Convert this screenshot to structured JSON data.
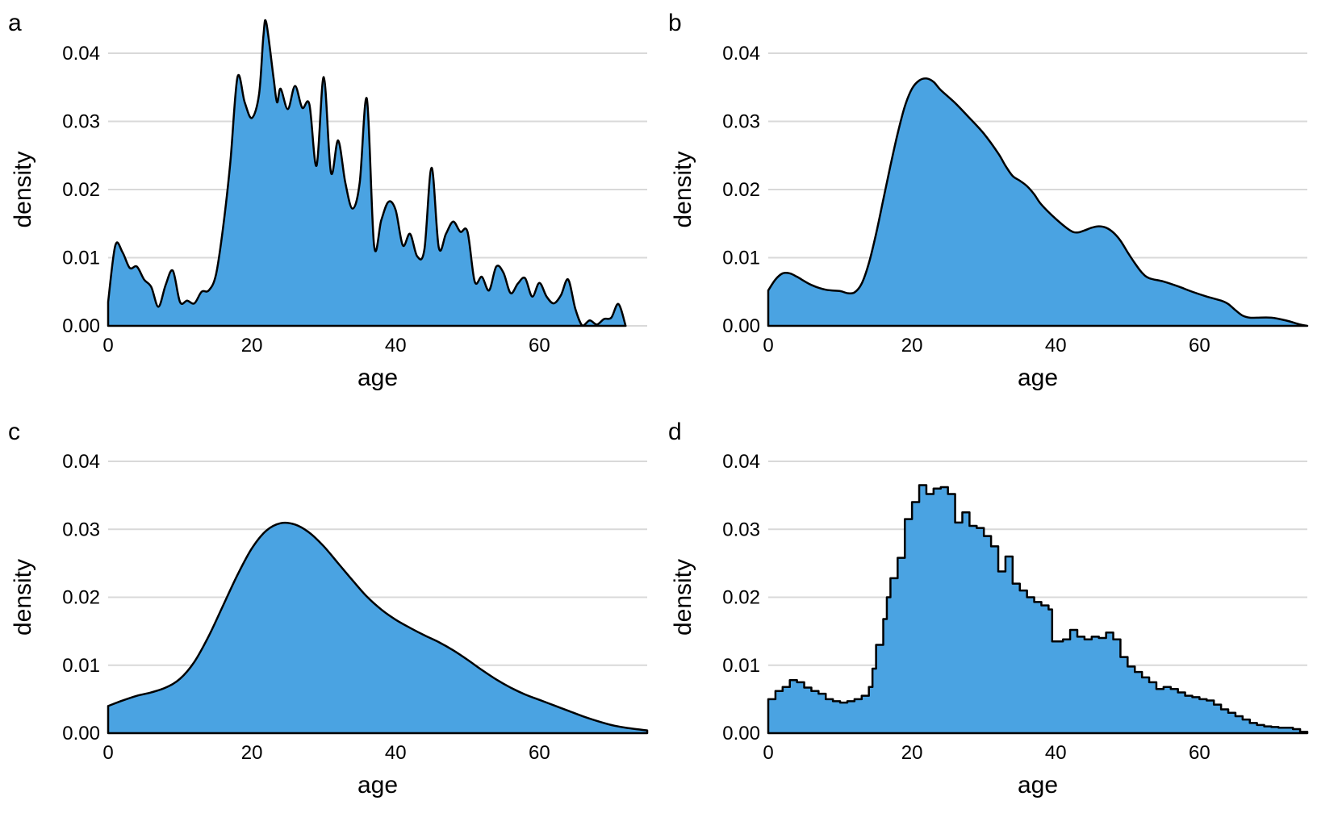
{
  "figure": {
    "fill_color": "#4AA3E2",
    "line_color": "#000000",
    "grid_color": "#d9d9d9"
  },
  "chart_data": [
    {
      "type": "area",
      "panel_label": "a",
      "xlabel": "age",
      "ylabel": "density",
      "xlim": [
        0,
        75
      ],
      "ylim": [
        0,
        0.04
      ],
      "x_ticks": [
        "0",
        "20",
        "40",
        "60"
      ],
      "y_ticks": [
        "0.00",
        "0.01",
        "0.02",
        "0.03",
        "0.04"
      ],
      "grid": "horizontal",
      "points": [
        [
          0,
          0.0035
        ],
        [
          1,
          0.0118
        ],
        [
          2,
          0.0108
        ],
        [
          3,
          0.0085
        ],
        [
          4,
          0.0087
        ],
        [
          5,
          0.0068
        ],
        [
          6,
          0.0057
        ],
        [
          7,
          0.0028
        ],
        [
          8,
          0.006
        ],
        [
          9,
          0.0081
        ],
        [
          10,
          0.0035
        ],
        [
          11,
          0.0037
        ],
        [
          12,
          0.0033
        ],
        [
          13,
          0.005
        ],
        [
          14,
          0.0052
        ],
        [
          15,
          0.0075
        ],
        [
          16,
          0.0145
        ],
        [
          17,
          0.024
        ],
        [
          18,
          0.0365
        ],
        [
          19,
          0.0328
        ],
        [
          20,
          0.0305
        ],
        [
          21,
          0.034
        ],
        [
          21.6,
          0.0425
        ],
        [
          22,
          0.0445
        ],
        [
          23,
          0.0365
        ],
        [
          23.5,
          0.0328
        ],
        [
          24,
          0.0348
        ],
        [
          25,
          0.0318
        ],
        [
          26,
          0.0352
        ],
        [
          27,
          0.032
        ],
        [
          28,
          0.0325
        ],
        [
          29,
          0.0235
        ],
        [
          30,
          0.0365
        ],
        [
          31,
          0.0225
        ],
        [
          32,
          0.0272
        ],
        [
          33,
          0.021
        ],
        [
          34,
          0.0172
        ],
        [
          35,
          0.021
        ],
        [
          36,
          0.0333
        ],
        [
          37,
          0.0118
        ],
        [
          38,
          0.0155
        ],
        [
          39,
          0.0182
        ],
        [
          40,
          0.017
        ],
        [
          41,
          0.0118
        ],
        [
          42,
          0.0135
        ],
        [
          43,
          0.0102
        ],
        [
          44,
          0.0112
        ],
        [
          45,
          0.0232
        ],
        [
          46,
          0.0115
        ],
        [
          47,
          0.0135
        ],
        [
          48,
          0.0153
        ],
        [
          49,
          0.0138
        ],
        [
          50,
          0.0138
        ],
        [
          51,
          0.0065
        ],
        [
          52,
          0.0072
        ],
        [
          53,
          0.0052
        ],
        [
          54,
          0.0087
        ],
        [
          55,
          0.0078
        ],
        [
          56,
          0.0048
        ],
        [
          57,
          0.0062
        ],
        [
          58,
          0.007
        ],
        [
          59,
          0.0043
        ],
        [
          60,
          0.0063
        ],
        [
          61,
          0.0043
        ],
        [
          62,
          0.0033
        ],
        [
          63,
          0.0045
        ],
        [
          64,
          0.0068
        ],
        [
          65,
          0.0025
        ],
        [
          66,
          0.0
        ],
        [
          67,
          0.0008
        ],
        [
          68,
          0.0002
        ],
        [
          69,
          0.001
        ],
        [
          70,
          0.0012
        ],
        [
          71,
          0.0032
        ],
        [
          72,
          0.0
        ]
      ]
    },
    {
      "type": "area",
      "panel_label": "b",
      "xlabel": "age",
      "ylabel": "density",
      "xlim": [
        0,
        75
      ],
      "ylim": [
        0,
        0.04
      ],
      "x_ticks": [
        "0",
        "20",
        "40",
        "60"
      ],
      "y_ticks": [
        "0.00",
        "0.01",
        "0.02",
        "0.03",
        "0.04"
      ],
      "grid": "horizontal",
      "points": [
        [
          0,
          0.0052
        ],
        [
          1,
          0.0068
        ],
        [
          2,
          0.0077
        ],
        [
          3,
          0.0077
        ],
        [
          4,
          0.0072
        ],
        [
          6,
          0.006
        ],
        [
          8,
          0.0053
        ],
        [
          10,
          0.0051
        ],
        [
          11,
          0.0048
        ],
        [
          12,
          0.0049
        ],
        [
          13,
          0.0062
        ],
        [
          14,
          0.0092
        ],
        [
          15,
          0.0135
        ],
        [
          16,
          0.0185
        ],
        [
          17,
          0.0235
        ],
        [
          18,
          0.0282
        ],
        [
          19,
          0.0322
        ],
        [
          20,
          0.0348
        ],
        [
          21,
          0.036
        ],
        [
          22,
          0.0363
        ],
        [
          23,
          0.0358
        ],
        [
          24,
          0.0346
        ],
        [
          26,
          0.0327
        ],
        [
          28,
          0.0305
        ],
        [
          30,
          0.0282
        ],
        [
          32,
          0.0253
        ],
        [
          33,
          0.0235
        ],
        [
          34,
          0.022
        ],
        [
          35,
          0.0213
        ],
        [
          36,
          0.0205
        ],
        [
          37,
          0.0193
        ],
        [
          38,
          0.0178
        ],
        [
          40,
          0.0157
        ],
        [
          42,
          0.014
        ],
        [
          43,
          0.0137
        ],
        [
          44,
          0.014
        ],
        [
          45,
          0.0144
        ],
        [
          46,
          0.0146
        ],
        [
          47,
          0.0144
        ],
        [
          48,
          0.0137
        ],
        [
          49,
          0.0125
        ],
        [
          50,
          0.0108
        ],
        [
          51,
          0.0092
        ],
        [
          52,
          0.0078
        ],
        [
          53,
          0.007
        ],
        [
          55,
          0.0065
        ],
        [
          57,
          0.0058
        ],
        [
          59,
          0.005
        ],
        [
          61,
          0.0043
        ],
        [
          63,
          0.0037
        ],
        [
          64,
          0.0032
        ],
        [
          65,
          0.0023
        ],
        [
          66,
          0.0015
        ],
        [
          67,
          0.0012
        ],
        [
          68,
          0.0012
        ],
        [
          70,
          0.0012
        ],
        [
          72,
          0.0008
        ],
        [
          74,
          0.0002
        ],
        [
          75,
          0.0
        ]
      ]
    },
    {
      "type": "area",
      "panel_label": "c",
      "xlabel": "age",
      "ylabel": "density",
      "xlim": [
        0,
        75
      ],
      "ylim": [
        0,
        0.04
      ],
      "x_ticks": [
        "0",
        "20",
        "40",
        "60"
      ],
      "y_ticks": [
        "0.00",
        "0.01",
        "0.02",
        "0.03",
        "0.04"
      ],
      "grid": "horizontal",
      "points": [
        [
          0,
          0.004
        ],
        [
          2,
          0.0048
        ],
        [
          4,
          0.0055
        ],
        [
          6,
          0.006
        ],
        [
          8,
          0.0067
        ],
        [
          10,
          0.008
        ],
        [
          12,
          0.0105
        ],
        [
          14,
          0.0143
        ],
        [
          16,
          0.0188
        ],
        [
          18,
          0.0233
        ],
        [
          20,
          0.0272
        ],
        [
          22,
          0.0298
        ],
        [
          24,
          0.0309
        ],
        [
          26,
          0.0307
        ],
        [
          28,
          0.0295
        ],
        [
          30,
          0.0275
        ],
        [
          32,
          0.025
        ],
        [
          34,
          0.0225
        ],
        [
          36,
          0.0201
        ],
        [
          38,
          0.0182
        ],
        [
          40,
          0.0167
        ],
        [
          42,
          0.0155
        ],
        [
          44,
          0.0144
        ],
        [
          46,
          0.0134
        ],
        [
          48,
          0.0122
        ],
        [
          50,
          0.0108
        ],
        [
          52,
          0.0093
        ],
        [
          54,
          0.0079
        ],
        [
          56,
          0.0067
        ],
        [
          58,
          0.0057
        ],
        [
          60,
          0.0049
        ],
        [
          62,
          0.0041
        ],
        [
          64,
          0.0033
        ],
        [
          66,
          0.0025
        ],
        [
          68,
          0.0018
        ],
        [
          70,
          0.0012
        ],
        [
          72,
          0.0008
        ],
        [
          75,
          0.0004
        ]
      ]
    },
    {
      "type": "area",
      "panel_label": "d",
      "xlabel": "age",
      "ylabel": "density",
      "xlim": [
        0,
        75
      ],
      "ylim": [
        0,
        0.04
      ],
      "x_ticks": [
        "0",
        "20",
        "40",
        "60"
      ],
      "y_ticks": [
        "0.00",
        "0.01",
        "0.02",
        "0.03",
        "0.04"
      ],
      "grid": "horizontal",
      "step_width": 0.5,
      "points": [
        [
          0,
          0.005
        ],
        [
          1,
          0.0062
        ],
        [
          2,
          0.0068
        ],
        [
          3,
          0.0078
        ],
        [
          4,
          0.0075
        ],
        [
          5,
          0.0067
        ],
        [
          6,
          0.0062
        ],
        [
          7,
          0.0058
        ],
        [
          8,
          0.005
        ],
        [
          9,
          0.0047
        ],
        [
          10,
          0.0045
        ],
        [
          11,
          0.0047
        ],
        [
          12,
          0.005
        ],
        [
          13,
          0.0055
        ],
        [
          14,
          0.0068
        ],
        [
          14.5,
          0.0095
        ],
        [
          15,
          0.013
        ],
        [
          16,
          0.0168
        ],
        [
          16.5,
          0.02
        ],
        [
          17,
          0.0228
        ],
        [
          18,
          0.0258
        ],
        [
          19,
          0.0315
        ],
        [
          20,
          0.034
        ],
        [
          21,
          0.0365
        ],
        [
          22,
          0.0352
        ],
        [
          23,
          0.036
        ],
        [
          24,
          0.0362
        ],
        [
          25,
          0.0352
        ],
        [
          26,
          0.031
        ],
        [
          27,
          0.0325
        ],
        [
          28,
          0.0305
        ],
        [
          29,
          0.0302
        ],
        [
          30,
          0.029
        ],
        [
          31,
          0.0275
        ],
        [
          32,
          0.0238
        ],
        [
          33,
          0.026
        ],
        [
          34,
          0.022
        ],
        [
          35,
          0.021
        ],
        [
          36,
          0.02
        ],
        [
          37,
          0.0193
        ],
        [
          38,
          0.0188
        ],
        [
          39,
          0.0182
        ],
        [
          39.5,
          0.0135
        ],
        [
          40,
          0.0135
        ],
        [
          41,
          0.0138
        ],
        [
          42,
          0.0152
        ],
        [
          43,
          0.0142
        ],
        [
          44,
          0.0138
        ],
        [
          45,
          0.0142
        ],
        [
          46,
          0.014
        ],
        [
          47,
          0.0148
        ],
        [
          48,
          0.0138
        ],
        [
          49,
          0.0112
        ],
        [
          50,
          0.0098
        ],
        [
          51,
          0.009
        ],
        [
          52,
          0.0082
        ],
        [
          53,
          0.0075
        ],
        [
          54,
          0.0065
        ],
        [
          55,
          0.0068
        ],
        [
          56,
          0.0065
        ],
        [
          57,
          0.006
        ],
        [
          58,
          0.0055
        ],
        [
          59,
          0.0053
        ],
        [
          60,
          0.005
        ],
        [
          61,
          0.0048
        ],
        [
          62,
          0.0042
        ],
        [
          63,
          0.0035
        ],
        [
          64,
          0.003
        ],
        [
          65,
          0.0025
        ],
        [
          66,
          0.002
        ],
        [
          67,
          0.0015
        ],
        [
          68,
          0.0012
        ],
        [
          69,
          0.001
        ],
        [
          70,
          0.0009
        ],
        [
          71,
          0.0008
        ],
        [
          72,
          0.0008
        ],
        [
          73,
          0.0006
        ],
        [
          74,
          0.0002
        ],
        [
          75,
          0.0
        ]
      ]
    }
  ]
}
